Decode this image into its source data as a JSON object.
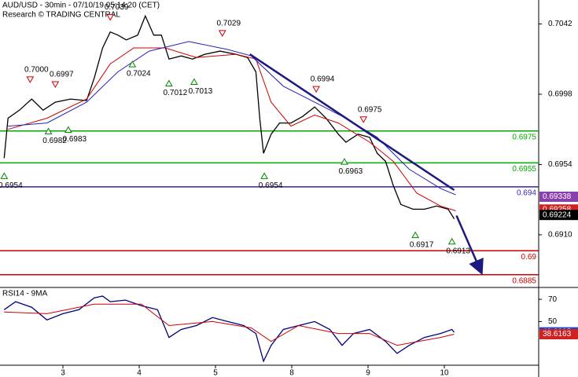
{
  "chart_data": [
    {
      "type": "line",
      "title": "AUD/USD - 30min - 07/10/19 05:14:20 (CET)",
      "subtitle": "Research © TRADING CENTRAL",
      "xlim": [
        2.175,
        9.237
      ],
      "ylim": [
        0.6877,
        0.7057
      ],
      "yticks": [
        {
          "value": 0.691,
          "label": "0.6910"
        },
        0.6954,
        0.6998,
        0.7042
      ],
      "series": [
        {
          "color": "#000000",
          "x": [
            2.23,
            2.28,
            2.43,
            2.59,
            2.74,
            2.9,
            3.1,
            3.31,
            3.41,
            3.52,
            3.62,
            3.72,
            3.83,
            3.98,
            4.08,
            4.19,
            4.29,
            4.39,
            4.55,
            4.7,
            4.86,
            5.06,
            5.27,
            5.42,
            5.53,
            5.58,
            5.63,
            5.73,
            5.84,
            5.99,
            6.14,
            6.3,
            6.45,
            6.61,
            6.71,
            6.87,
            7.02,
            7.12,
            7.23,
            7.33,
            7.43,
            7.59,
            7.74,
            7.9,
            8.05,
            8.13
          ],
          "values": [
            0.6958,
            0.6983,
            0.6988,
            0.6995,
            0.6988,
            0.6993,
            0.6995,
            0.6994,
            0.7008,
            0.7027,
            0.7037,
            0.7035,
            0.7032,
            0.7035,
            0.7047,
            0.7035,
            0.7035,
            0.702,
            0.7022,
            0.702,
            0.7023,
            0.7025,
            0.7023,
            0.7021,
            0.7012,
            0.6983,
            0.6961,
            0.6973,
            0.698,
            0.698,
            0.6984,
            0.699,
            0.6983,
            0.6973,
            0.6968,
            0.6973,
            0.6971,
            0.6961,
            0.6956,
            0.6941,
            0.6929,
            0.6926,
            0.6926,
            0.6928,
            0.6926,
            0.692
          ]
        },
        {
          "color": "#cc0000",
          "x": [
            2.28,
            2.79,
            3.31,
            3.62,
            3.93,
            4.34,
            4.75,
            5.27,
            5.53,
            5.73,
            5.99,
            6.3,
            6.61,
            7.02,
            7.33,
            7.64,
            7.95,
            8.15
          ],
          "values": [
            0.6976,
            0.6983,
            0.6995,
            0.7017,
            0.7027,
            0.7027,
            0.7021,
            0.7023,
            0.702,
            0.6993,
            0.6978,
            0.6985,
            0.698,
            0.6968,
            0.6956,
            0.6936,
            0.6928,
            0.6925
          ]
        },
        {
          "color": "#2222bb",
          "x": [
            2.28,
            2.79,
            3.31,
            3.72,
            4.13,
            4.65,
            5.16,
            5.47,
            5.89,
            6.3,
            6.71,
            7.12,
            7.54,
            7.95,
            8.15
          ],
          "values": [
            0.6978,
            0.698,
            0.6993,
            0.7012,
            0.7025,
            0.7031,
            0.7026,
            0.7022,
            0.7003,
            0.6993,
            0.6983,
            0.6971,
            0.6951,
            0.6939,
            0.6935
          ]
        }
      ],
      "trendlines": [
        {
          "color": "#1a1a80",
          "x": [
            5.45,
            8.13
          ],
          "values": [
            0.7023,
            0.6938
          ],
          "arrow": false
        },
        {
          "color": "#1a1a80",
          "x": [
            8.16,
            8.48
          ],
          "values": [
            0.6922,
            0.6887
          ],
          "arrow": true
        }
      ],
      "levels": {
        "values": [
          0.6975,
          0.6955,
          0.694,
          0.69,
          0.6885
        ],
        "colors": [
          "#00aa00",
          "#00aa00",
          "#3a1fb0",
          "#cc0000",
          "#cc0000"
        ]
      },
      "highs": {
        "color": "#cc0000",
        "x": [
          2.57,
          2.9,
          3.62,
          5.09,
          6.32,
          6.94
        ],
        "values": [
          0.7,
          0.6997,
          0.7039,
          0.7029,
          0.6994,
          0.6975
        ],
        "value_labels": [
          "0.7000",
          "0.6997",
          "0.7039",
          "0.7029",
          "0.6994",
          "0.6975"
        ]
      },
      "lows": {
        "color": "#008800",
        "x": [
          2.23,
          2.81,
          3.07,
          3.91,
          4.39,
          4.72,
          5.64,
          6.69,
          7.62,
          8.1
        ],
        "values": [
          0.6954,
          0.6982,
          0.6983,
          0.7024,
          0.7012,
          0.7013,
          0.6954,
          0.6963,
          0.6917,
          0.6913
        ],
        "value_labels": [
          "0.6954",
          "0.6982",
          "0.6983",
          "0.7024",
          "0.7012",
          "0.7013",
          "0.6954",
          "0.6963",
          "0.6917",
          "0.6913"
        ]
      },
      "price_boxes": {
        "values": [
          0.69338,
          0.69258,
          0.69224
        ],
        "colors": [
          "#8a3fb0",
          "#d02020",
          "#000000"
        ]
      }
    },
    {
      "type": "line",
      "title": "RSI14 - 9MA",
      "xlim": [
        2.175,
        9.237
      ],
      "ylim": [
        10.7,
        80.7
      ],
      "yticks": [
        50,
        70
      ],
      "xticks": [
        3,
        4,
        5,
        {
          "value": 6,
          "label": "8"
        },
        {
          "value": 7,
          "label": "9"
        },
        {
          "value": 8,
          "label": "10"
        }
      ],
      "series": [
        {
          "color": "#000080",
          "x": [
            2.23,
            2.38,
            2.59,
            2.79,
            3.0,
            3.21,
            3.41,
            3.52,
            3.62,
            3.82,
            4.03,
            4.24,
            4.39,
            4.55,
            4.75,
            4.96,
            5.16,
            5.37,
            5.53,
            5.63,
            5.73,
            5.89,
            6.09,
            6.3,
            6.5,
            6.66,
            6.81,
            7.02,
            7.23,
            7.38,
            7.54,
            7.74,
            7.95,
            8.1,
            8.13
          ],
          "values": [
            60.7,
            67.9,
            62.9,
            51.4,
            57.1,
            60.7,
            71.4,
            72.9,
            67.9,
            69.3,
            64.3,
            60.7,
            35.7,
            42.9,
            46.4,
            53.6,
            50,
            46.4,
            39.3,
            14.3,
            28.6,
            42.9,
            46.4,
            50,
            42.9,
            28.6,
            39.3,
            42.9,
            32.1,
            21.4,
            28.6,
            35.7,
            39.3,
            42.9,
            40.3
          ]
        },
        {
          "color": "#cc0000",
          "x": [
            2.23,
            2.79,
            3.41,
            4.03,
            4.39,
            4.96,
            5.47,
            5.73,
            6.09,
            6.61,
            7.02,
            7.38,
            7.95,
            8.13
          ],
          "values": [
            58.6,
            57.1,
            65.7,
            65.7,
            46.4,
            50,
            44.3,
            32.1,
            46.4,
            39.3,
            39.3,
            28.6,
            35.7,
            38.6
          ]
        }
      ],
      "price_boxes": {
        "values": [
          40.3295,
          38.6163
        ],
        "colors": [
          "#2244cc",
          "#d02020"
        ]
      }
    }
  ]
}
